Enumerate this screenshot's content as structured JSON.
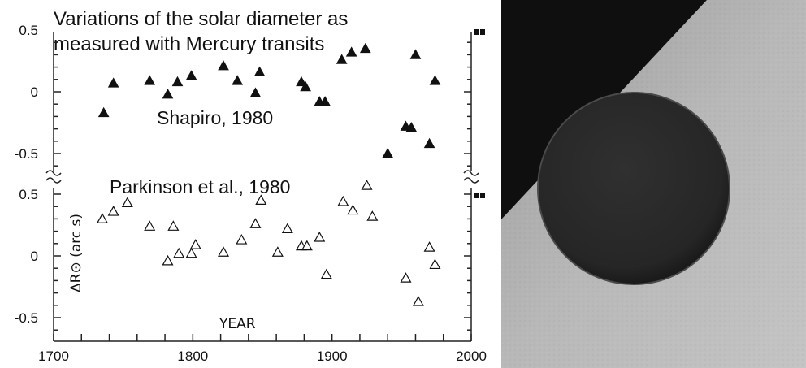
{
  "chart_data": {
    "type": "scatter",
    "title": "Variations of the solar diameter as\nmeasured with Mercury transits",
    "xlabel": "YEAR",
    "ylabel": "ΔR⊙ (arc s)",
    "xlim": [
      1700,
      2000
    ],
    "xticks": [
      "1700",
      "1800",
      "1900",
      "2000"
    ],
    "panels": [
      {
        "name": "Shapiro, 1980",
        "marker": "filled-triangle",
        "ylim": [
          -0.65,
          0.55
        ],
        "yticks": [
          "0.5",
          "0",
          "-0.5"
        ],
        "points": [
          [
            1736,
            -0.17
          ],
          [
            1743,
            0.07
          ],
          [
            1769,
            0.09
          ],
          [
            1782,
            -0.02
          ],
          [
            1789,
            0.08
          ],
          [
            1799,
            0.13
          ],
          [
            1822,
            0.21
          ],
          [
            1832,
            0.09
          ],
          [
            1845,
            -0.01
          ],
          [
            1848,
            0.16
          ],
          [
            1878,
            0.08
          ],
          [
            1881,
            0.04
          ],
          [
            1891,
            -0.08
          ],
          [
            1895,
            -0.08
          ],
          [
            1907,
            0.26
          ],
          [
            1914,
            0.32
          ],
          [
            1924,
            0.35
          ],
          [
            1940,
            -0.5
          ],
          [
            1953,
            -0.28
          ],
          [
            1957,
            -0.29
          ],
          [
            1960,
            0.3
          ],
          [
            1970,
            -0.42
          ],
          [
            1974,
            0.09
          ]
        ]
      },
      {
        "name": "Parkinson et al., 1980",
        "marker": "open-triangle",
        "ylim": [
          -0.65,
          0.55
        ],
        "yticks": [
          "0.5",
          "0",
          "-0.5"
        ],
        "points": [
          [
            1735,
            0.3
          ],
          [
            1743,
            0.36
          ],
          [
            1753,
            0.43
          ],
          [
            1769,
            0.24
          ],
          [
            1782,
            -0.04
          ],
          [
            1786,
            0.24
          ],
          [
            1790,
            0.02
          ],
          [
            1799,
            0.02
          ],
          [
            1802,
            0.09
          ],
          [
            1822,
            0.03
          ],
          [
            1835,
            0.13
          ],
          [
            1845,
            0.26
          ],
          [
            1849,
            0.45
          ],
          [
            1861,
            0.03
          ],
          [
            1868,
            0.22
          ],
          [
            1878,
            0.08
          ],
          [
            1882,
            0.08
          ],
          [
            1891,
            0.15
          ],
          [
            1896,
            -0.15
          ],
          [
            1908,
            0.44
          ],
          [
            1915,
            0.37
          ],
          [
            1925,
            0.57
          ],
          [
            1929,
            0.32
          ],
          [
            1953,
            -0.18
          ],
          [
            1962,
            -0.37
          ],
          [
            1970,
            0.07
          ],
          [
            1974,
            -0.07
          ]
        ]
      }
    ]
  },
  "photo": {
    "sky_color": "#0f0f0f",
    "sun_color": "#b4b4b4",
    "planet_color": "#2a2a2a"
  }
}
